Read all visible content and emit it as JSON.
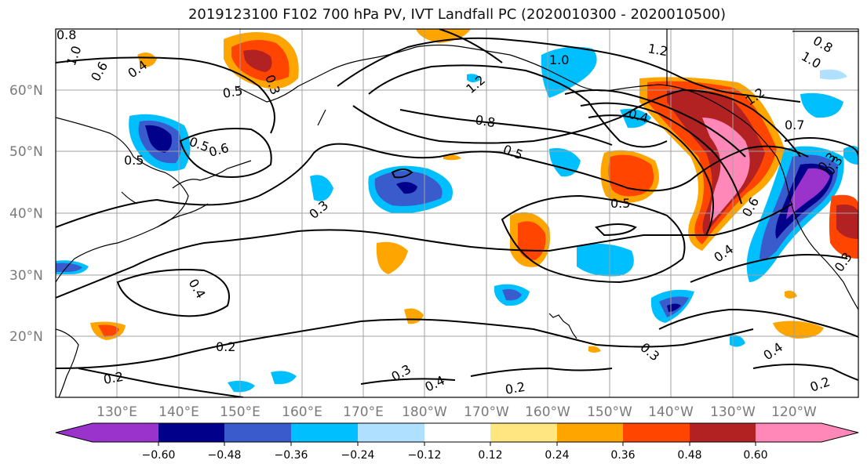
{
  "title": "2019123100 F102 700 hPa PV, IVT Landfall PC (2020010300 - 2020010500)",
  "lat_labels": [
    "60°N",
    "50°N",
    "40°N",
    "30°N",
    "20°N"
  ],
  "lon_labels": [
    "130°E",
    "140°E",
    "150°E",
    "160°E",
    "170°E",
    "180°W",
    "170°W",
    "160°W",
    "150°W",
    "140°W",
    "130°W",
    "120°W"
  ],
  "colorbar": {
    "ticks": [
      "−0.60",
      "−0.48",
      "−0.36",
      "−0.24",
      "−0.12",
      "0.12",
      "0.24",
      "0.36",
      "0.48",
      "0.60"
    ],
    "colors": [
      "#9933cc",
      "#00008b",
      "#3a5bcc",
      "#00bfff",
      "#b0e0ff",
      "#ffffff",
      "#ffe680",
      "#ffa500",
      "#ff4500",
      "#b22222",
      "#ff88b8"
    ]
  },
  "contour_labels": [
    "0.8",
    "1.0",
    "0.6",
    "0.4",
    "0.3",
    "0.5",
    "0.5",
    "0.6",
    "0.5",
    "0.3",
    "1.0",
    "1.2",
    "1.2",
    "0.8",
    "0.5",
    "0.4",
    "1.2",
    "0.7",
    "0.6",
    "0.5",
    "0.3",
    "0.4",
    "0.4",
    "0.2",
    "0.2",
    "0.3",
    "0.4",
    "0.2",
    "0.3",
    "0.4",
    "0.2",
    "0.8",
    "1.0",
    "0.3",
    "0.3"
  ]
}
